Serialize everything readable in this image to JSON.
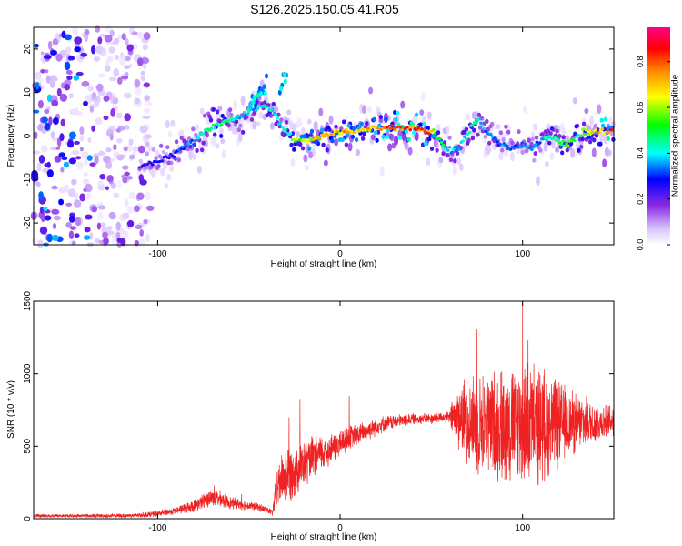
{
  "title": "S126.2025.150.05.41.R05",
  "colors": {
    "snr_line": "#ee2222",
    "axis": "#000000",
    "background": "#ffffff"
  },
  "chart_data": [
    {
      "type": "heatmap",
      "xlabel": "Height of straight line (km)",
      "ylabel": "Frequency (Hz)",
      "xlim": [
        -168,
        150
      ],
      "ylim": [
        -25,
        25
      ],
      "xticks": [
        -100,
        0,
        100
      ],
      "xtick_labels": [
        "-100",
        "0",
        "100"
      ],
      "yticks": [
        -20,
        -10,
        0,
        10,
        20
      ],
      "ytick_labels": [
        "-20",
        "-10",
        "0",
        "10",
        "20"
      ],
      "colorbar": {
        "label": "Normalized spectral amplitude",
        "range": [
          0,
          0.95
        ],
        "ticks": [
          0.0,
          0.2,
          0.4,
          0.6,
          0.8
        ],
        "tick_labels": [
          "0.0",
          "0.2",
          "0.4",
          "0.6",
          "0.8"
        ],
        "colormap": "rainbow (white-violet-blue-cyan-green-yellow-orange-red-magenta)"
      },
      "ridge": {
        "x": [
          -110,
          -100,
          -90,
          -80,
          -72,
          -64,
          -56,
          -48,
          -42,
          -37,
          -33,
          -30,
          -28,
          -25,
          -20,
          -10,
          0,
          10,
          20,
          30,
          40,
          46,
          50,
          53,
          56,
          60,
          64,
          68,
          72,
          76,
          80,
          85,
          90,
          95,
          100,
          105,
          110,
          115,
          120,
          125,
          130,
          135,
          140,
          145,
          150
        ],
        "y": [
          -7,
          -6,
          -4,
          -1,
          2,
          3,
          4,
          6,
          7,
          6,
          3,
          1,
          0,
          -1,
          -1,
          0,
          1,
          1,
          2,
          2,
          2,
          1.5,
          1,
          0,
          -2,
          -3,
          -3,
          -1,
          2,
          4,
          1,
          -1,
          -2,
          -3,
          -2,
          -3,
          -1,
          0,
          -1,
          -2,
          0,
          1,
          1,
          1,
          1
        ],
        "peak_amplitude": [
          0.25,
          0.3,
          0.35,
          0.4,
          0.5,
          0.55,
          0.45,
          0.4,
          0.45,
          0.5,
          0.45,
          0.5,
          0.45,
          0.65,
          0.7,
          0.75,
          0.8,
          0.75,
          0.8,
          0.9,
          0.92,
          0.9,
          0.8,
          0.6,
          0.5,
          0.45,
          0.4,
          0.45,
          0.5,
          0.45,
          0.4,
          0.35,
          0.4,
          0.35,
          0.4,
          0.35,
          0.4,
          0.5,
          0.55,
          0.6,
          0.55,
          0.65,
          0.75,
          0.85,
          0.95
        ]
      },
      "side_arms": [
        {
          "x": [
            -50,
            -45,
            -40
          ],
          "y": [
            7,
            9,
            12
          ]
        },
        {
          "x": [
            -33,
            -31,
            -29
          ],
          "y": [
            10,
            13,
            15
          ]
        }
      ],
      "noise_region": {
        "x": [
          -168,
          -110
        ],
        "amplitude_max": 0.35
      }
    },
    {
      "type": "line",
      "xlabel": "Height of straight line (km)",
      "ylabel": "SNR (10 * v/v)",
      "xlim": [
        -168,
        150
      ],
      "ylim": [
        0,
        1500
      ],
      "xticks": [
        -100,
        0,
        100
      ],
      "xtick_labels": [
        "-100",
        "0",
        "100"
      ],
      "yticks": [
        0,
        500,
        1000,
        1500
      ],
      "ytick_labels": [
        "0",
        "500",
        "1000",
        "1500"
      ],
      "series": [
        {
          "x": [
            -168,
            -140,
            -120,
            -110,
            -100,
            -90,
            -80,
            -75,
            -70,
            -65,
            -60,
            -55,
            -50,
            -45,
            -40,
            -37,
            -35,
            -32,
            -30,
            -28,
            -25,
            -22,
            -20,
            -15,
            -10,
            -5,
            0,
            5,
            10,
            15,
            20,
            25,
            30,
            35,
            40,
            45,
            50,
            55,
            60,
            62,
            65,
            70,
            75,
            80,
            85,
            90,
            95,
            100,
            105,
            110,
            115,
            120,
            125,
            130,
            135,
            140,
            145,
            150
          ],
          "mean": [
            20,
            20,
            20,
            25,
            35,
            55,
            90,
            120,
            150,
            130,
            110,
            100,
            90,
            80,
            60,
            40,
            200,
            280,
            300,
            320,
            330,
            360,
            370,
            420,
            450,
            480,
            520,
            560,
            580,
            610,
            640,
            660,
            670,
            680,
            690,
            690,
            690,
            700,
            700,
            700,
            700,
            680,
            660,
            650,
            650,
            640,
            640,
            640,
            650,
            650,
            650,
            650,
            660,
            660,
            660,
            660,
            670,
            680
          ],
          "spread": [
            12,
            12,
            14,
            16,
            20,
            25,
            40,
            50,
            60,
            50,
            40,
            35,
            30,
            25,
            22,
            20,
            120,
            170,
            190,
            190,
            170,
            150,
            150,
            140,
            120,
            100,
            90,
            80,
            70,
            65,
            60,
            50,
            45,
            40,
            35,
            35,
            35,
            35,
            40,
            150,
            210,
            280,
            320,
            340,
            360,
            380,
            390,
            400,
            400,
            380,
            330,
            280,
            230,
            190,
            160,
            140,
            110,
            100
          ],
          "notable_peaks": [
            {
              "x": -69,
              "y": 230
            },
            {
              "x": -54,
              "y": 170
            },
            {
              "x": -28,
              "y": 700
            },
            {
              "x": -22,
              "y": 820
            },
            {
              "x": 5,
              "y": 850
            },
            {
              "x": 75,
              "y": 1310
            },
            {
              "x": 100,
              "y": 1500
            },
            {
              "x": 103,
              "y": 1230
            }
          ]
        }
      ]
    }
  ]
}
